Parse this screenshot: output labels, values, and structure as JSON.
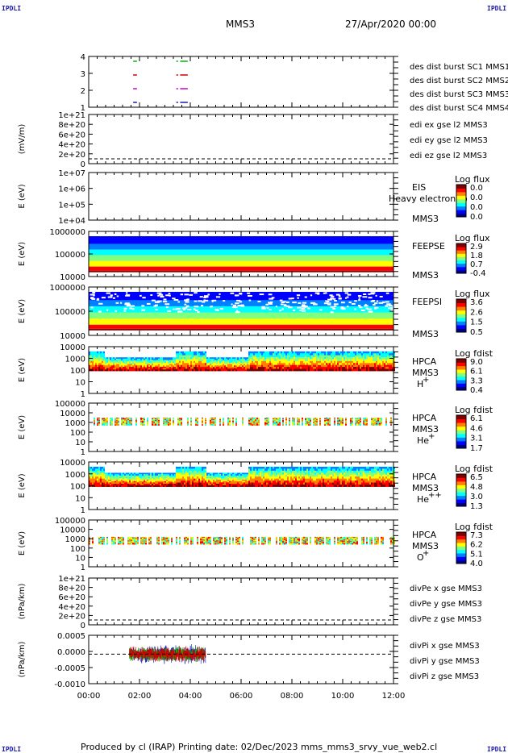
{
  "header": {
    "instrument": "MMS3",
    "date": "27/Apr/2020 00:00",
    "corner_left": "IPDLI",
    "corner_right": "IPDLI"
  },
  "footer": "Produced by cl (IRAP)   Printing date: 02/Dec/2023   mms_mms3_srvy_vue_web2.cl",
  "colors": {
    "mms1": "#1a1ab0",
    "mms2": "#cc00cc",
    "mms3": "#cc0000",
    "mms4": "#00bb00",
    "x": "#cc0000",
    "y": "#00bb00",
    "z": "#1a1ab0"
  },
  "chart_data": [
    {
      "type": "line",
      "panel": "burst",
      "yticks": [
        "4",
        "3",
        "2",
        "1"
      ],
      "legend": [
        {
          "name": "des dist burst SC1 MMS1",
          "color": "#1a1ab0"
        },
        {
          "name": "des dist burst SC2 MMS2",
          "color": "#cc00cc"
        },
        {
          "name": "des dist burst SC3 MMS3",
          "color": "#cc0000"
        },
        {
          "name": "des dist burst SC4 MMS4",
          "color": "#00bb00"
        }
      ],
      "segments": [
        [
          1.75,
          1.9
        ],
        [
          3.45,
          3.52
        ],
        [
          3.6,
          3.9
        ]
      ]
    },
    {
      "type": "line",
      "panel": "edi",
      "ylabel": "(mV/m)",
      "yticks": [
        "1e+21",
        "8e+20",
        "6e+20",
        "4e+20",
        "2e+20",
        "0"
      ],
      "legend": [
        {
          "name": "edi ex gse l2 MMS3",
          "color": "#cc0000"
        },
        {
          "name": "edi ey gse l2 MMS3",
          "color": "#00bb00"
        },
        {
          "name": "edi ez gse l2 MMS3",
          "color": "#1a1ab0"
        }
      ]
    },
    {
      "type": "heatmap",
      "panel": "eis",
      "ylabel": "E (eV)",
      "yticks": [
        "1e+07",
        "1e+06",
        "1e+05",
        "1e+04"
      ],
      "label": "EIS",
      "sc": "MMS3",
      "overflow_label": "Heavy electron to",
      "cb_title": "Log flux",
      "cb_ticks": [
        "0.0",
        "0.0",
        "0.0",
        "0.0"
      ]
    },
    {
      "type": "heatmap",
      "panel": "feeps_e",
      "ylabel": "E (eV)",
      "yticks": [
        "1000000",
        "100000",
        "10000"
      ],
      "label": "FEEPSE",
      "sc": "MMS3",
      "cb_title": "Log flux",
      "cb_ticks": [
        "2.9",
        "1.8",
        "0.7",
        "-0.4"
      ]
    },
    {
      "type": "heatmap",
      "panel": "feeps_i",
      "ylabel": "E (eV)",
      "yticks": [
        "1000000",
        "100000",
        "10000"
      ],
      "label": "FEEPSI",
      "sc": "MMS3",
      "cb_title": "Log flux",
      "cb_ticks": [
        "3.6",
        "2.6",
        "1.5",
        "0.5"
      ]
    },
    {
      "type": "heatmap",
      "panel": "hpca_h",
      "ylabel": "E (eV)",
      "yticks": [
        "10000",
        "1000",
        "100",
        "10",
        "1"
      ],
      "label": "HPCA",
      "sc": "MMS3",
      "species": "H",
      "charge": "+",
      "cb_title": "Log fdist",
      "cb_ticks": [
        "9.0",
        "6.1",
        "3.3",
        "0.4"
      ]
    },
    {
      "type": "heatmap",
      "panel": "hpca_he",
      "ylabel": "E (eV)",
      "yticks": [
        "100000",
        "10000",
        "1000",
        "100",
        "10",
        "1"
      ],
      "label": "HPCA",
      "sc": "MMS3",
      "species": "He",
      "charge": "+",
      "cb_title": "Log fdist",
      "cb_ticks": [
        "6.1",
        "4.6",
        "3.1",
        "1.7"
      ]
    },
    {
      "type": "heatmap",
      "panel": "hpca_hepp",
      "ylabel": "E (eV)",
      "yticks": [
        "10000",
        "1000",
        "100",
        "10",
        "1"
      ],
      "label": "HPCA",
      "sc": "MMS3",
      "species": "He",
      "charge": "++",
      "cb_title": "Log fdist",
      "cb_ticks": [
        "6.5",
        "4.8",
        "3.0",
        "1.3"
      ]
    },
    {
      "type": "heatmap",
      "panel": "hpca_o",
      "ylabel": "E (eV)",
      "yticks": [
        "100000",
        "10000",
        "1000",
        "100",
        "10",
        "1"
      ],
      "label": "HPCA",
      "sc": "MMS3",
      "species": "O",
      "charge": "+",
      "cb_title": "Log fdist",
      "cb_ticks": [
        "7.3",
        "6.2",
        "5.1",
        "4.0"
      ]
    },
    {
      "type": "line",
      "panel": "divpe",
      "ylabel": "(nPa/km)",
      "yticks": [
        "1e+21",
        "8e+20",
        "6e+20",
        "4e+20",
        "2e+20",
        "0"
      ],
      "legend": [
        {
          "name": "divPe x gse MMS3",
          "color": "#cc0000"
        },
        {
          "name": "divPe y gse MMS3",
          "color": "#00bb00"
        },
        {
          "name": "divPe z gse MMS3",
          "color": "#1a1ab0"
        }
      ]
    },
    {
      "type": "line",
      "panel": "divpi",
      "ylabel": "(nPa/km)",
      "yticks": [
        "0.0005",
        "0.0000",
        "-0.0005",
        "-0.0010"
      ],
      "ylim": [
        -0.0011,
        0.0007
      ],
      "legend": [
        {
          "name": "divPi x gse MMS3",
          "color": "#cc0000"
        },
        {
          "name": "divPi y gse MMS3",
          "color": "#00bb00"
        },
        {
          "name": "divPi z gse MMS3",
          "color": "#1a1ab0"
        }
      ],
      "data_range_hours": [
        1.6,
        4.6
      ]
    }
  ],
  "xaxis": {
    "ticks": [
      "00:00",
      "02:00",
      "04:00",
      "06:00",
      "08:00",
      "10:00",
      "12:00"
    ],
    "range_hours": [
      0,
      12
    ]
  }
}
